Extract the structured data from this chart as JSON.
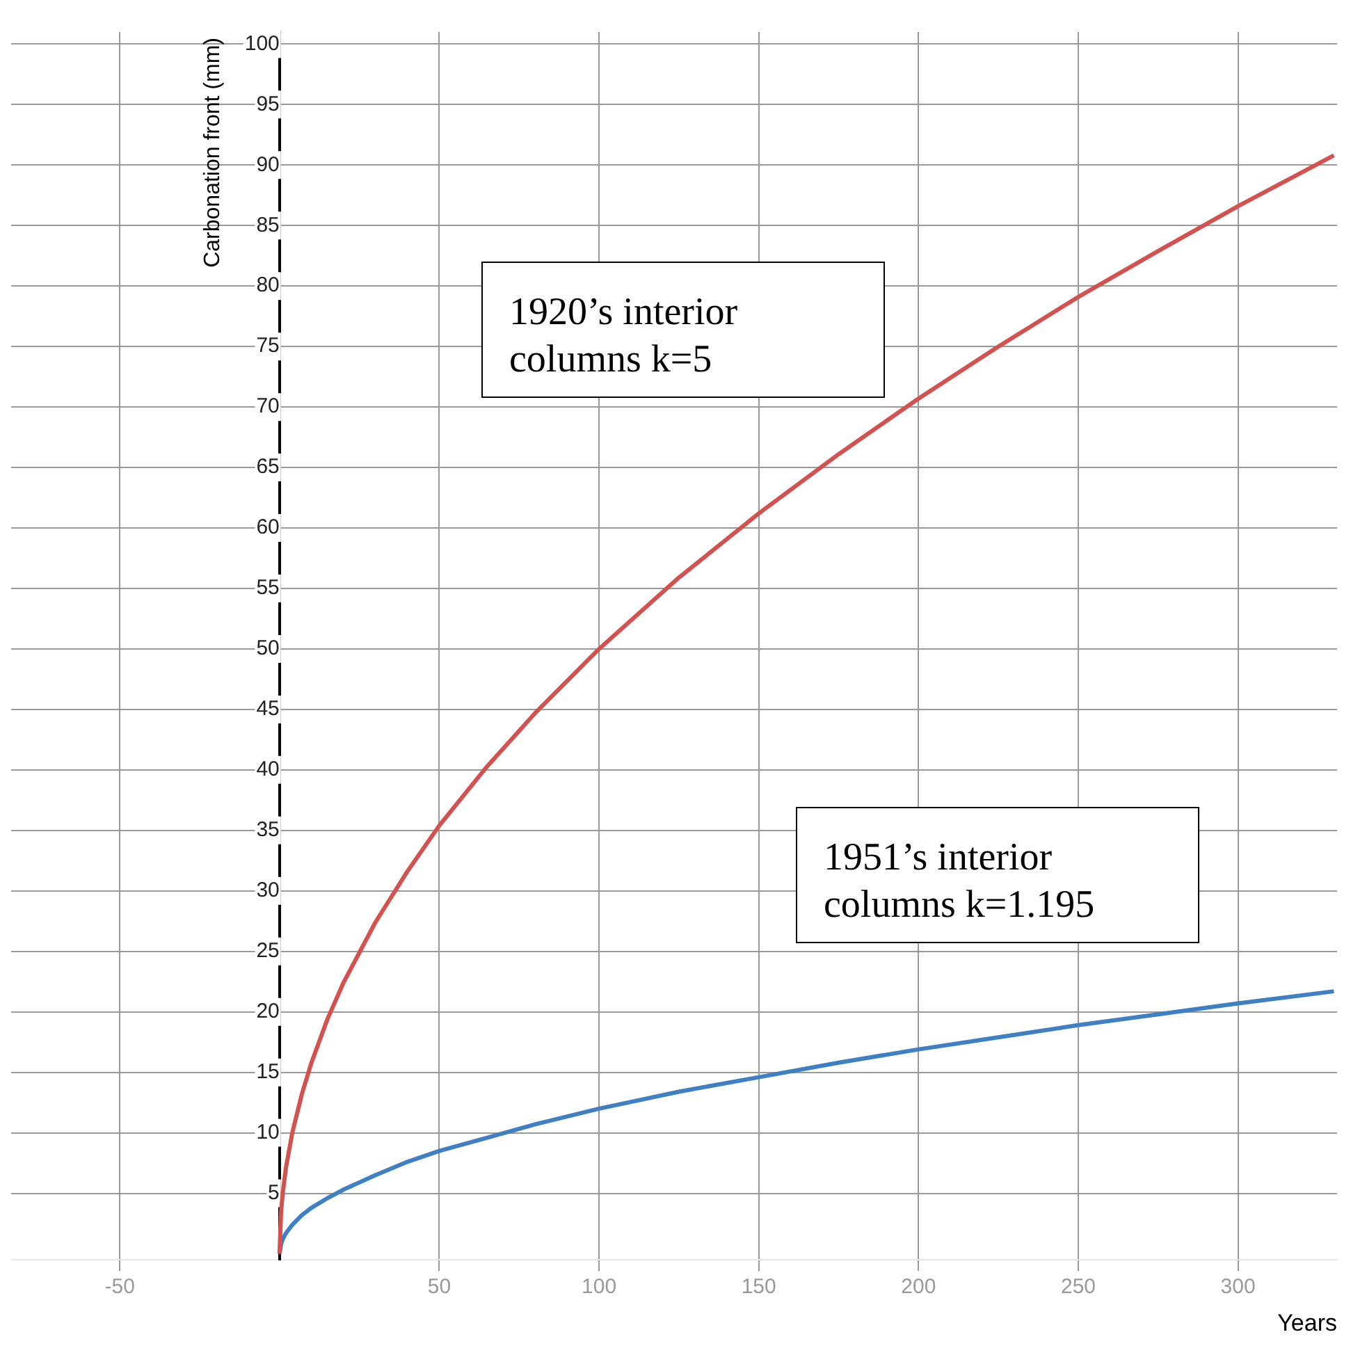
{
  "chart_data": {
    "type": "line",
    "xlabel": "Years",
    "ylabel": "Carbonation front (mm)",
    "annotations": [
      "1920’s interior columns k=5",
      "1951’s interior columns k=1.195"
    ],
    "x": [
      0,
      0.5,
      1,
      2,
      4,
      7,
      10,
      15,
      20,
      30,
      40,
      50,
      65,
      80,
      100,
      125,
      150,
      175,
      200,
      225,
      250,
      275,
      300,
      330
    ],
    "series": [
      {
        "color": "#d3524f",
        "values": [
          0,
          3.5,
          5,
          7.1,
          10,
          13.2,
          15.8,
          19.4,
          22.4,
          27.4,
          31.6,
          35.4,
          40.3,
          44.7,
          50,
          55.9,
          61.2,
          66.1,
          70.7,
          75,
          79.1,
          82.9,
          86.6,
          90.8
        ]
      },
      {
        "color": "#3f7fc4",
        "values": [
          0,
          0.8,
          1.2,
          1.7,
          2.4,
          3.2,
          3.8,
          4.6,
          5.3,
          6.5,
          7.6,
          8.5,
          9.6,
          10.7,
          12,
          13.4,
          14.6,
          15.8,
          16.9,
          17.9,
          18.9,
          19.8,
          20.7,
          21.7
        ]
      }
    ],
    "xlim": [
      -84,
      331
    ],
    "ylim": [
      -0.5,
      101
    ],
    "xticks": [
      -50,
      50,
      100,
      150,
      200,
      250,
      300
    ],
    "yticks": [
      5,
      10,
      15,
      20,
      25,
      30,
      35,
      40,
      45,
      50,
      55,
      60,
      65,
      70,
      75,
      80,
      85,
      90,
      95,
      100
    ],
    "grid": true,
    "legend": false,
    "marker": "none",
    "line_style": "solid"
  }
}
